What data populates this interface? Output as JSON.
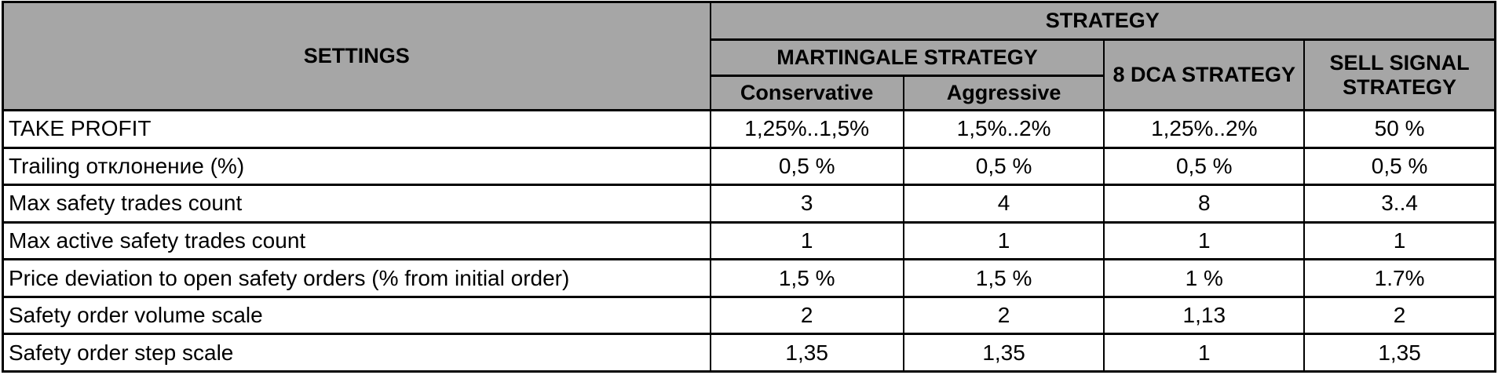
{
  "table": {
    "settings_header": "SETTINGS",
    "strategy_header": "STRATEGY",
    "groups": {
      "martingale": "MARTINGALE STRATEGY",
      "dca": "8 DCA STRATEGY",
      "sell": "SELL SIGNAL STRATEGY"
    },
    "sub_cols": [
      "Conservative",
      "Aggressive"
    ],
    "rows": [
      {
        "label": "TAKE PROFIT",
        "values": [
          "1,25%..1,5%",
          "1,5%..2%",
          "1,25%..2%",
          "50 %"
        ]
      },
      {
        "label": "Trailing отклонение (%)",
        "values": [
          "0,5 %",
          "0,5 %",
          "0,5 %",
          "0,5 %"
        ]
      },
      {
        "label": "Max safety trades count",
        "values": [
          "3",
          "4",
          "8",
          "3..4"
        ]
      },
      {
        "label": "Max active safety trades count",
        "values": [
          "1",
          "1",
          "1",
          "1"
        ]
      },
      {
        "label": "Price deviation to open safety orders (% from initial order)",
        "values": [
          "1,5 %",
          "1,5 %",
          "1 %",
          "1.7%"
        ]
      },
      {
        "label": "Safety order volume scale",
        "values": [
          "2",
          "2",
          "1,13",
          "2"
        ]
      },
      {
        "label": "Safety order step scale",
        "values": [
          "1,35",
          "1,35",
          "1",
          "1,35"
        ]
      }
    ],
    "colors": {
      "header_bg": "#a6a6a6",
      "border": "#000000",
      "body_bg": "#ffffff"
    }
  }
}
